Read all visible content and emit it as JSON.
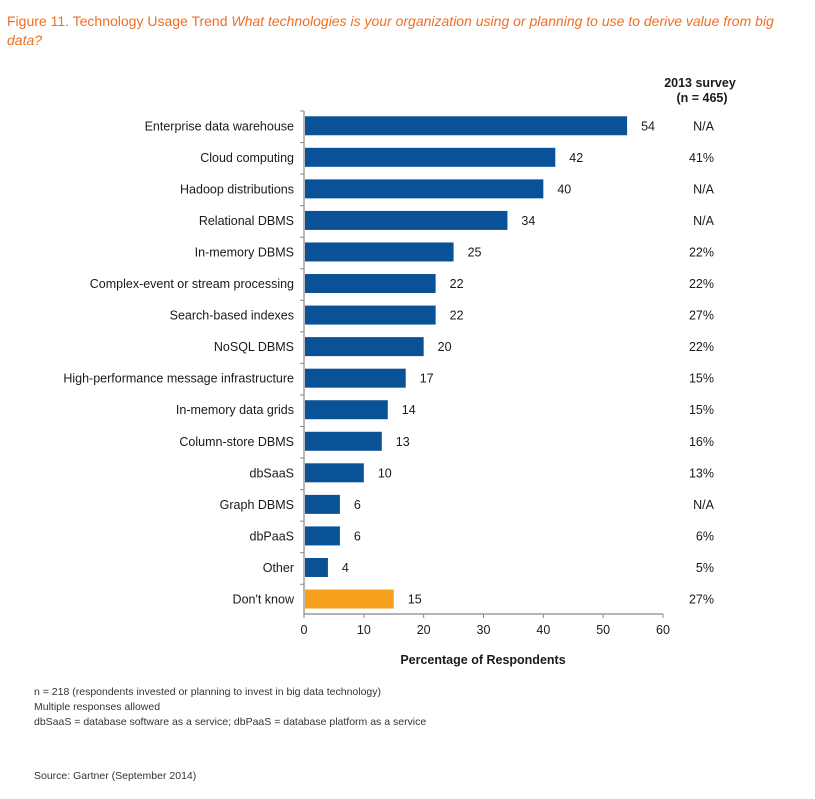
{
  "figure": {
    "title_prefix": "Figure 11. Technology Usage Trend ",
    "title_question": "What technologies is your organization using or planning to use to derive value from big data?"
  },
  "colors": {
    "title": "#f26d21",
    "bar": "#0a5298",
    "highlight_bar": "#f5a11d",
    "axis": "#888888"
  },
  "chart_data": {
    "type": "bar",
    "orientation": "horizontal",
    "title": "Technology Usage Trend",
    "xlabel": "Percentage of Respondents",
    "ylabel": "",
    "xlim": [
      0,
      60
    ],
    "xticks": [
      0,
      10,
      20,
      30,
      40,
      50,
      60
    ],
    "grid": false,
    "categories": [
      "Enterprise data warehouse",
      "Cloud computing",
      "Hadoop distributions",
      "Relational DBMS",
      "In-memory DBMS",
      "Complex-event or stream processing",
      "Search-based indexes",
      "NoSQL DBMS",
      "High-performance message infrastructure",
      "In-memory data grids",
      "Column-store DBMS",
      "dbSaaS",
      "Graph DBMS",
      "dbPaaS",
      "Other",
      "Don't know"
    ],
    "values": [
      54,
      42,
      40,
      34,
      25,
      22,
      22,
      20,
      17,
      14,
      13,
      10,
      6,
      6,
      4,
      15
    ],
    "highlighted": [
      "Don't know"
    ],
    "comparison_column": {
      "header_line1": "2013 survey",
      "header_line2": "(n = 465)",
      "values": [
        "N/A",
        "41%",
        "N/A",
        "N/A",
        "22%",
        "22%",
        "27%",
        "22%",
        "15%",
        "15%",
        "16%",
        "13%",
        "N/A",
        "6%",
        "5%",
        "27%"
      ]
    }
  },
  "notes": [
    "n = 218 (respondents invested or planning to invest in big data technology)",
    "Multiple responses allowed",
    "dbSaaS = database software as a service; dbPaaS = database platform as a service"
  ],
  "source": "Source: Gartner (September 2014)"
}
